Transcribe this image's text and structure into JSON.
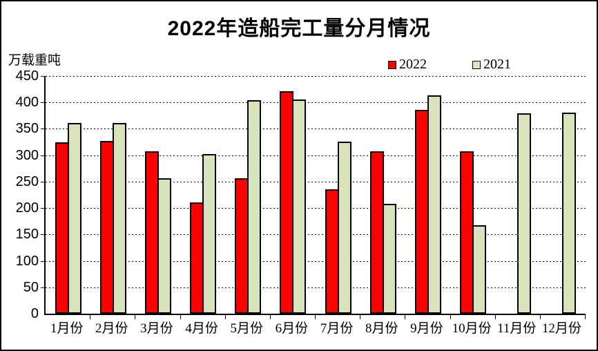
{
  "title": "2022年造船完工量分月情况",
  "unit_label": "万载重吨",
  "colors": {
    "background": "#FFFFFF",
    "axis": "#000000",
    "grid": "#000000",
    "series_2022": "#FF0000",
    "series_2021": "#D8E4BC",
    "bar_border": "#000000"
  },
  "legend": {
    "position": "top-right",
    "items": [
      {
        "label": "2022",
        "color": "#FF0000"
      },
      {
        "label": "2021",
        "color": "#D8E4BC"
      }
    ]
  },
  "chart_data": {
    "type": "bar",
    "title": "2022年造船完工量分月情况",
    "ylabel": "万载重吨",
    "xlabel": "",
    "ylim": [
      0,
      450
    ],
    "ytick_step": 50,
    "ytick_labels": [
      "0",
      "50",
      "100",
      "150",
      "200",
      "250",
      "300",
      "350",
      "400",
      "450"
    ],
    "grid": "dashed-horizontal",
    "legend_position": "top-right",
    "categories": [
      "1月份",
      "2月份",
      "3月份",
      "4月份",
      "5月份",
      "6月份",
      "7月份",
      "8月份",
      "9月份",
      "10月份",
      "11月份",
      "12月份"
    ],
    "series": [
      {
        "name": "2022",
        "color": "#FF0000",
        "values": [
          325,
          327,
          307,
          211,
          256,
          421,
          235,
          308,
          386,
          307,
          null,
          null
        ]
      },
      {
        "name": "2021",
        "color": "#D8E4BC",
        "values": [
          361,
          361,
          256,
          302,
          404,
          405,
          326,
          208,
          413,
          167,
          380,
          381
        ]
      }
    ]
  }
}
